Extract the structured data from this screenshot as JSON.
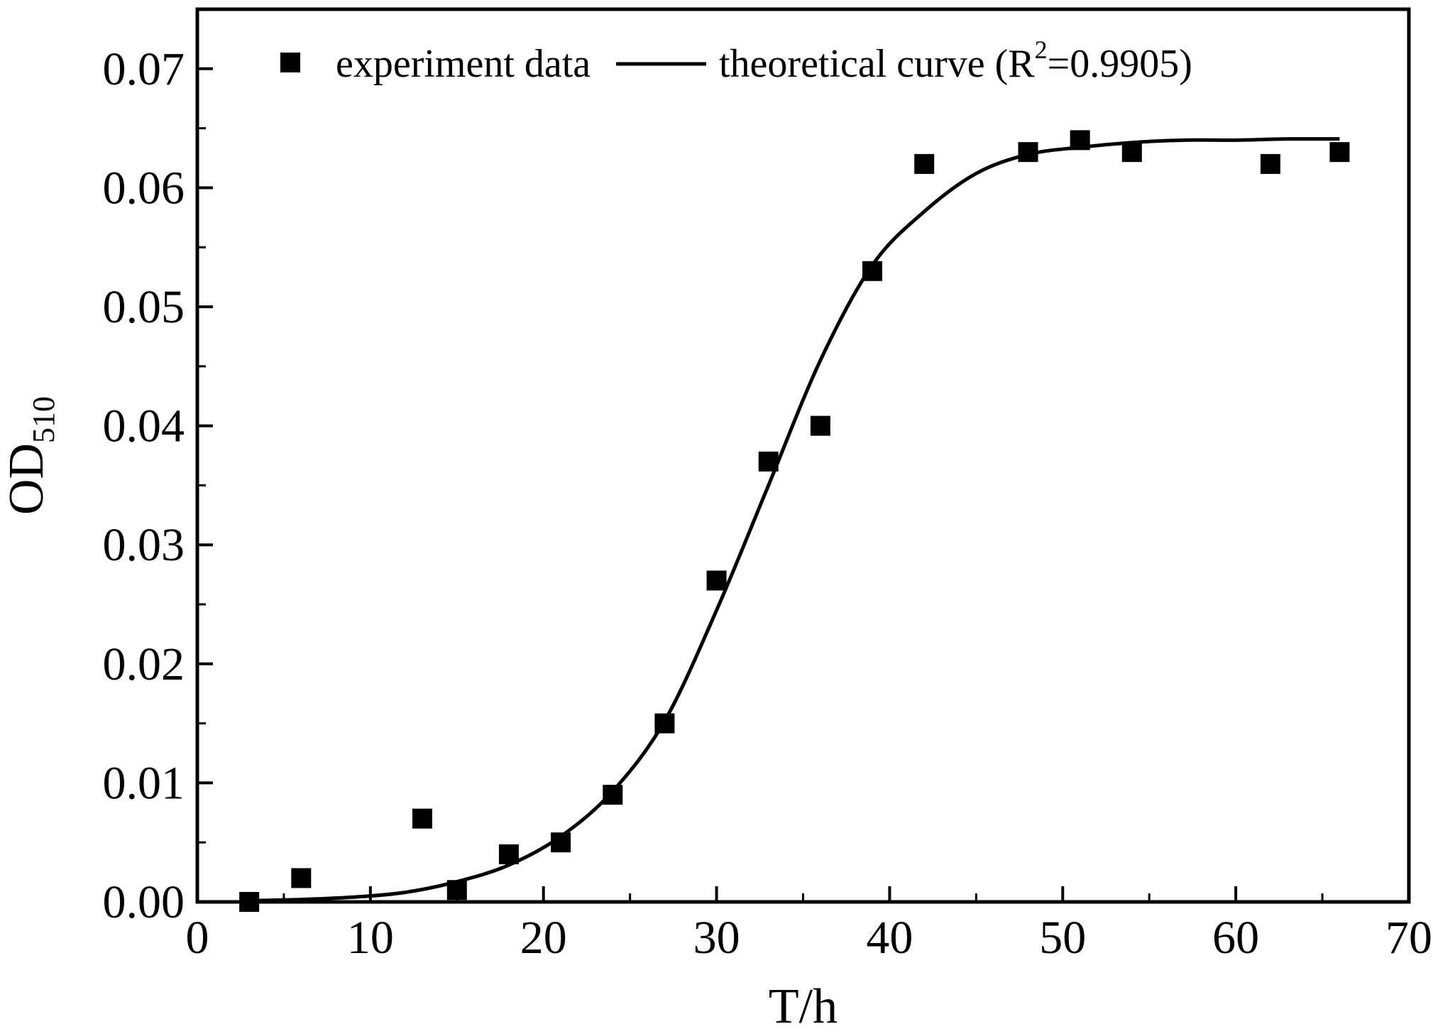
{
  "chart_data": {
    "type": "scatter",
    "title": "",
    "xlabel": "T/h",
    "ylabel": {
      "main": "OD",
      "subscript": "510"
    },
    "xlim": [
      0,
      70
    ],
    "ylim": [
      0,
      0.075
    ],
    "x_ticks": [
      0,
      10,
      20,
      30,
      40,
      50,
      60,
      70
    ],
    "x_tick_labels": [
      "0",
      "10",
      "20",
      "30",
      "40",
      "50",
      "60",
      "70"
    ],
    "y_ticks": [
      0,
      0.01,
      0.02,
      0.03,
      0.04,
      0.05,
      0.06,
      0.07
    ],
    "y_tick_labels": [
      "0.00",
      "0.01",
      "0.02",
      "0.03",
      "0.04",
      "0.05",
      "0.06",
      "0.07"
    ],
    "grid": false,
    "legend": {
      "placement": "top-left",
      "entries": [
        {
          "label": "experiment data",
          "marker": "square"
        },
        {
          "label_prefix": "theoretical curve (R",
          "label_sup": "2",
          "label_suffix": "=0.9905)",
          "marker": "line"
        }
      ]
    },
    "series": [
      {
        "name": "experiment data",
        "kind": "scatter",
        "marker": "square",
        "color": "#000000",
        "points": [
          [
            3,
            0.0
          ],
          [
            6,
            0.002
          ],
          [
            13,
            0.007
          ],
          [
            15,
            0.001
          ],
          [
            18,
            0.004
          ],
          [
            21,
            0.005
          ],
          [
            24,
            0.009
          ],
          [
            27,
            0.015
          ],
          [
            30,
            0.027
          ],
          [
            33,
            0.037
          ],
          [
            36,
            0.04
          ],
          [
            39,
            0.053
          ],
          [
            42,
            0.062
          ],
          [
            48,
            0.063
          ],
          [
            51,
            0.064
          ],
          [
            54,
            0.063
          ],
          [
            62,
            0.062
          ],
          [
            66,
            0.063
          ]
        ]
      },
      {
        "name": "theoretical curve (R2=0.9905)",
        "kind": "line",
        "color": "#000000",
        "points": [
          [
            3,
            0.0001
          ],
          [
            6,
            0.0002
          ],
          [
            9,
            0.0004
          ],
          [
            12,
            0.0008
          ],
          [
            15,
            0.0017
          ],
          [
            18,
            0.0031
          ],
          [
            21,
            0.0055
          ],
          [
            24,
            0.0093
          ],
          [
            27,
            0.0152
          ],
          [
            30,
            0.0245
          ],
          [
            33,
            0.035
          ],
          [
            36,
            0.0455
          ],
          [
            39,
            0.0535
          ],
          [
            42,
            0.058
          ],
          [
            45,
            0.0612
          ],
          [
            48,
            0.0628
          ],
          [
            51,
            0.0634
          ],
          [
            54,
            0.0638
          ],
          [
            57,
            0.064
          ],
          [
            60,
            0.064
          ],
          [
            63,
            0.0641
          ],
          [
            66,
            0.0641
          ]
        ]
      }
    ]
  }
}
